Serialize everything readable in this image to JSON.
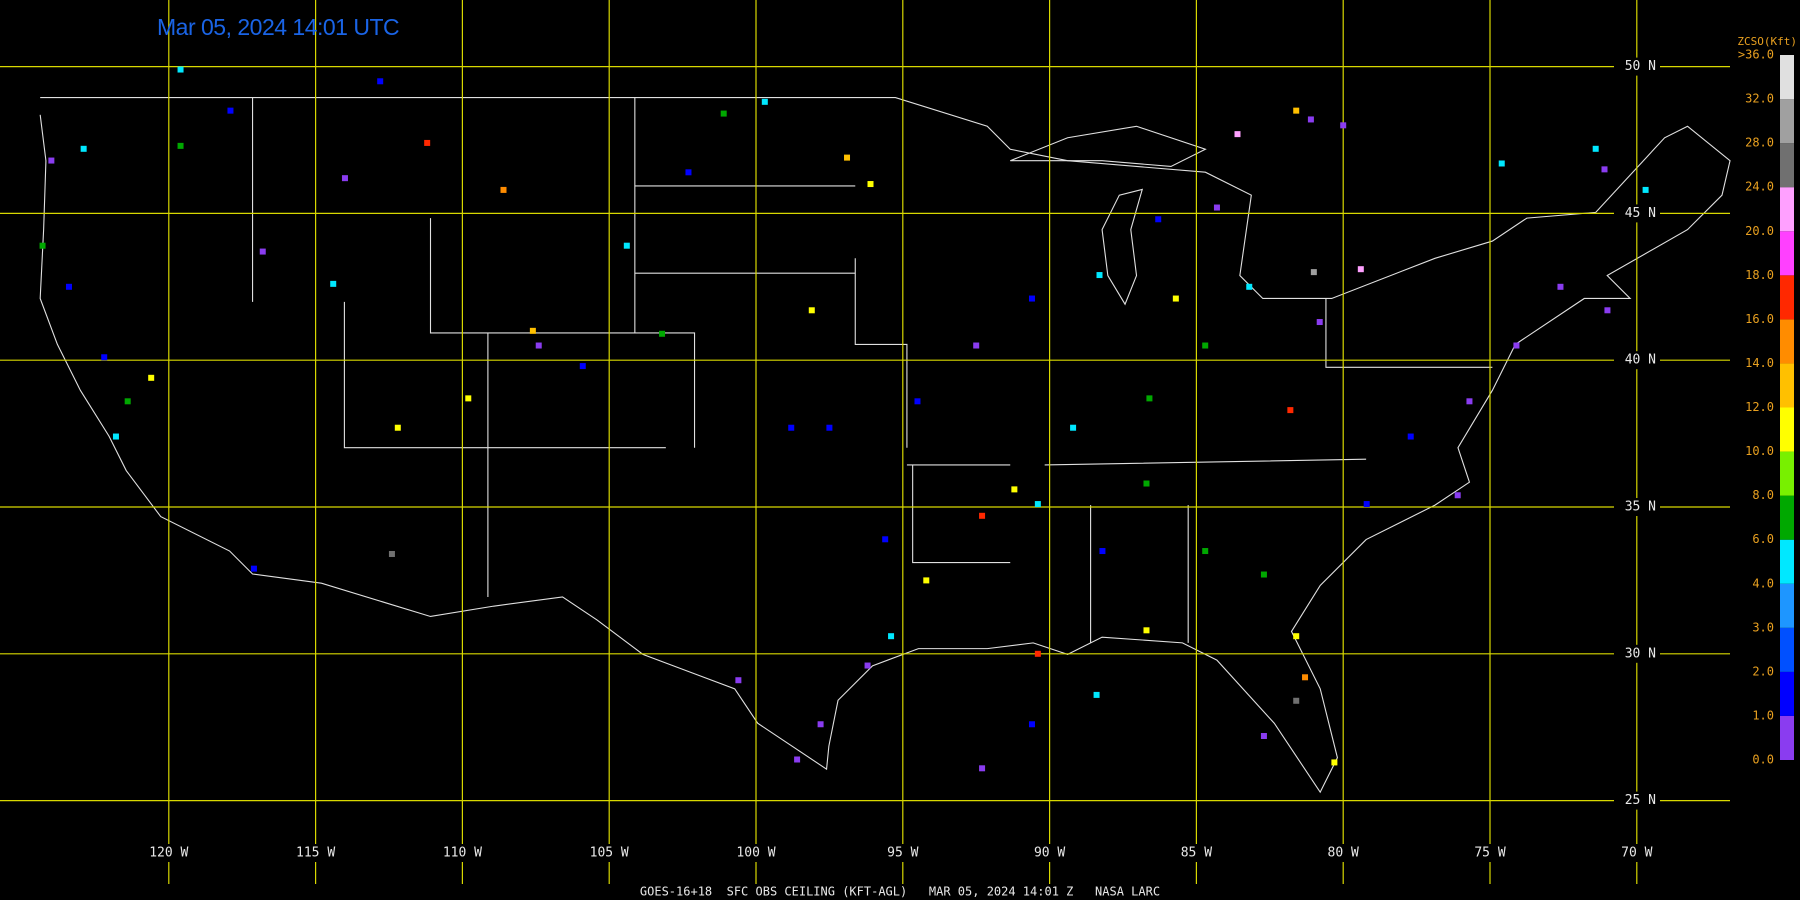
{
  "map": {
    "title": "Mar 05, 2024 14:01 UTC",
    "footer": "GOES-16+18  SFC OBS CEILING (KFT-AGL)   MAR 05, 2024 14:01 Z   NASA LARC",
    "lonticks": [
      {
        "value": -120,
        "label": "120 W"
      },
      {
        "value": -115,
        "label": "115 W"
      },
      {
        "value": -110,
        "label": "110 W"
      },
      {
        "value": -105,
        "label": "105 W"
      },
      {
        "value": -100,
        "label": "100 W"
      },
      {
        "value": -95,
        "label": "95 W"
      },
      {
        "value": -90,
        "label": "90 W"
      },
      {
        "value": -85,
        "label": "85 W"
      },
      {
        "value": -80,
        "label": "80 W"
      },
      {
        "value": -75,
        "label": "75 W"
      },
      {
        "value": -70,
        "label": "70 W"
      }
    ],
    "latticks": [
      {
        "value": 50,
        "label": "50 N"
      },
      {
        "value": 45,
        "label": "45 N"
      },
      {
        "value": 40,
        "label": "40 N"
      },
      {
        "value": 35,
        "label": "35 N"
      },
      {
        "value": 30,
        "label": "30 N"
      },
      {
        "value": 25,
        "label": "25 N"
      }
    ],
    "grid_color": "#d8d800",
    "colorbar": {
      "title": "ZCSO(Kft)",
      "ticks": [
        {
          "value": 0,
          "label": "0.0"
        },
        {
          "value": 1,
          "label": "1.0"
        },
        {
          "value": 2,
          "label": "2.0"
        },
        {
          "value": 3,
          "label": "3.0"
        },
        {
          "value": 4,
          "label": "4.0"
        },
        {
          "value": 6,
          "label": "6.0"
        },
        {
          "value": 8,
          "label": "8.0"
        },
        {
          "value": 10,
          "label": "10.0"
        },
        {
          "value": 12,
          "label": "12.0"
        },
        {
          "value": 14,
          "label": "14.0"
        },
        {
          "value": 16,
          "label": "16.0"
        },
        {
          "value": 18,
          "label": "18.0"
        },
        {
          "value": 20,
          "label": "20.0"
        },
        {
          "value": 24,
          "label": "24.0"
        },
        {
          "value": 28,
          "label": "28.0"
        },
        {
          "value": 32,
          "label": "32.0"
        },
        {
          "value": 36,
          "label": ">36.0"
        }
      ],
      "colors": [
        "#8a3cf0",
        "#0000ff",
        "#0050ff",
        "#1e96ff",
        "#00e8ff",
        "#00a800",
        "#78f000",
        "#ffff00",
        "#ffc000",
        "#ff8c00",
        "#ff2800",
        "#ff40ff",
        "#ffa0ff",
        "#707070",
        "#a0a0a0",
        "#e0e0e0"
      ]
    },
    "obs": [
      {
        "lon": -122.9,
        "lat": 47.2,
        "ceiling": 5
      },
      {
        "lon": -124.3,
        "lat": 43.9,
        "ceiling": 7
      },
      {
        "lon": -111.2,
        "lat": 47.4,
        "ceiling": 17
      },
      {
        "lon": -108.6,
        "lat": 45.8,
        "ceiling": 15
      },
      {
        "lon": -119.6,
        "lat": 47.3,
        "ceiling": 7
      },
      {
        "lon": -117.9,
        "lat": 48.5,
        "ceiling": 1.5
      },
      {
        "lon": -114.4,
        "lat": 42.6,
        "ceiling": 5
      },
      {
        "lon": -112.2,
        "lat": 37.7,
        "ceiling": 11
      },
      {
        "lon": -109.8,
        "lat": 38.7,
        "ceiling": 11
      },
      {
        "lon": -107.6,
        "lat": 41.0,
        "ceiling": 13
      },
      {
        "lon": -104.4,
        "lat": 43.9,
        "ceiling": 5
      },
      {
        "lon": -99.7,
        "lat": 48.8,
        "ceiling": 5
      },
      {
        "lon": -96.9,
        "lat": 46.9,
        "ceiling": 13
      },
      {
        "lon": -96.1,
        "lat": 46.0,
        "ceiling": 11
      },
      {
        "lon": -98.1,
        "lat": 41.7,
        "ceiling": 11
      },
      {
        "lon": -98.8,
        "lat": 37.7,
        "ceiling": 1.5
      },
      {
        "lon": -97.5,
        "lat": 37.7,
        "ceiling": 1.5
      },
      {
        "lon": -91.2,
        "lat": 35.6,
        "ceiling": 11
      },
      {
        "lon": -92.3,
        "lat": 34.7,
        "ceiling": 17
      },
      {
        "lon": -90.4,
        "lat": 35.1,
        "ceiling": 5
      },
      {
        "lon": -89.2,
        "lat": 37.7,
        "ceiling": 5
      },
      {
        "lon": -86.6,
        "lat": 38.7,
        "ceiling": 7
      },
      {
        "lon": -81.8,
        "lat": 38.3,
        "ceiling": 17
      },
      {
        "lon": -81.6,
        "lat": 48.5,
        "ceiling": 13
      },
      {
        "lon": -83.6,
        "lat": 47.7,
        "ceiling": 22
      },
      {
        "lon": -81.1,
        "lat": 48.2,
        "ceiling": 0.5
      },
      {
        "lon": -80.0,
        "lat": 48.0,
        "ceiling": 0.5
      },
      {
        "lon": -81.0,
        "lat": 43.0,
        "ceiling": 30
      },
      {
        "lon": -79.4,
        "lat": 43.1,
        "ceiling": 22
      },
      {
        "lon": -74.6,
        "lat": 46.7,
        "ceiling": 5
      },
      {
        "lon": -71.4,
        "lat": 47.2,
        "ceiling": 5
      },
      {
        "lon": -69.7,
        "lat": 45.8,
        "ceiling": 5
      },
      {
        "lon": -71.1,
        "lat": 46.5,
        "ceiling": 0.5
      },
      {
        "lon": -72.6,
        "lat": 42.5,
        "ceiling": 0.5
      },
      {
        "lon": -71.0,
        "lat": 41.7,
        "ceiling": 0.5
      },
      {
        "lon": -74.1,
        "lat": 40.5,
        "ceiling": 0.5
      },
      {
        "lon": -75.7,
        "lat": 38.6,
        "ceiling": 0.5
      },
      {
        "lon": -77.7,
        "lat": 37.4,
        "ceiling": 1.5
      },
      {
        "lon": -76.1,
        "lat": 35.4,
        "ceiling": 0.5
      },
      {
        "lon": -79.2,
        "lat": 35.1,
        "ceiling": 1.5
      },
      {
        "lon": -82.7,
        "lat": 32.7,
        "ceiling": 7
      },
      {
        "lon": -81.6,
        "lat": 30.6,
        "ceiling": 11
      },
      {
        "lon": -81.3,
        "lat": 29.2,
        "ceiling": 15
      },
      {
        "lon": -81.6,
        "lat": 28.4,
        "ceiling": 26
      },
      {
        "lon": -80.3,
        "lat": 26.3,
        "ceiling": 11
      },
      {
        "lon": -82.7,
        "lat": 27.2,
        "ceiling": 0.5
      },
      {
        "lon": -86.7,
        "lat": 30.8,
        "ceiling": 11
      },
      {
        "lon": -84.7,
        "lat": 33.5,
        "ceiling": 7
      },
      {
        "lon": -86.7,
        "lat": 35.8,
        "ceiling": 7
      },
      {
        "lon": -88.2,
        "lat": 33.5,
        "ceiling": 1.5
      },
      {
        "lon": -90.4,
        "lat": 30.0,
        "ceiling": 17
      },
      {
        "lon": -88.4,
        "lat": 28.6,
        "ceiling": 5
      },
      {
        "lon": -90.6,
        "lat": 27.6,
        "ceiling": 1.5
      },
      {
        "lon": -92.3,
        "lat": 26.1,
        "ceiling": 0.5
      },
      {
        "lon": -94.2,
        "lat": 32.5,
        "ceiling": 11
      },
      {
        "lon": -95.4,
        "lat": 30.6,
        "ceiling": 5
      },
      {
        "lon": -96.2,
        "lat": 29.6,
        "ceiling": 0.5
      },
      {
        "lon": -97.8,
        "lat": 27.6,
        "ceiling": 0.5
      },
      {
        "lon": -98.6,
        "lat": 26.4,
        "ceiling": 0.5
      },
      {
        "lon": -100.6,
        "lat": 29.1,
        "ceiling": 0.5
      },
      {
        "lon": -95.6,
        "lat": 33.9,
        "ceiling": 1.5
      },
      {
        "lon": -94.5,
        "lat": 38.6,
        "ceiling": 1.5
      },
      {
        "lon": -92.5,
        "lat": 40.5,
        "ceiling": 0.5
      },
      {
        "lon": -90.6,
        "lat": 42.1,
        "ceiling": 1.5
      },
      {
        "lon": -88.3,
        "lat": 42.9,
        "ceiling": 5
      },
      {
        "lon": -85.7,
        "lat": 42.1,
        "ceiling": 11
      },
      {
        "lon": -84.7,
        "lat": 40.5,
        "ceiling": 7
      },
      {
        "lon": -83.2,
        "lat": 42.5,
        "ceiling": 5
      },
      {
        "lon": -84.3,
        "lat": 45.2,
        "ceiling": 0.5
      },
      {
        "lon": -86.3,
        "lat": 44.8,
        "ceiling": 1.5
      },
      {
        "lon": -80.8,
        "lat": 41.3,
        "ceiling": 0.5
      },
      {
        "lon": -121.8,
        "lat": 37.4,
        "ceiling": 5
      },
      {
        "lon": -121.4,
        "lat": 38.6,
        "ceiling": 7
      },
      {
        "lon": -120.6,
        "lat": 39.4,
        "ceiling": 11
      },
      {
        "lon": -122.2,
        "lat": 40.1,
        "ceiling": 1.5
      },
      {
        "lon": -123.4,
        "lat": 42.5,
        "ceiling": 1.5
      },
      {
        "lon": -124.0,
        "lat": 46.8,
        "ceiling": 0.5
      },
      {
        "lon": -117.1,
        "lat": 32.9,
        "ceiling": 1.5
      },
      {
        "lon": -112.4,
        "lat": 33.4,
        "ceiling": 26
      },
      {
        "lon": -112.8,
        "lat": 49.5,
        "ceiling": 1.5
      },
      {
        "lon": -119.6,
        "lat": 49.9,
        "ceiling": 5
      },
      {
        "lon": -116.8,
        "lat": 43.7,
        "ceiling": 0.5
      },
      {
        "lon": -114.0,
        "lat": 46.2,
        "ceiling": 0.5
      },
      {
        "lon": -102.3,
        "lat": 46.4,
        "ceiling": 1.5
      },
      {
        "lon": -101.1,
        "lat": 48.4,
        "ceiling": 7
      },
      {
        "lon": -107.4,
        "lat": 40.5,
        "ceiling": 0.5
      },
      {
        "lon": -105.9,
        "lat": 39.8,
        "ceiling": 1.5
      },
      {
        "lon": -103.2,
        "lat": 40.9,
        "ceiling": 7
      }
    ]
  }
}
